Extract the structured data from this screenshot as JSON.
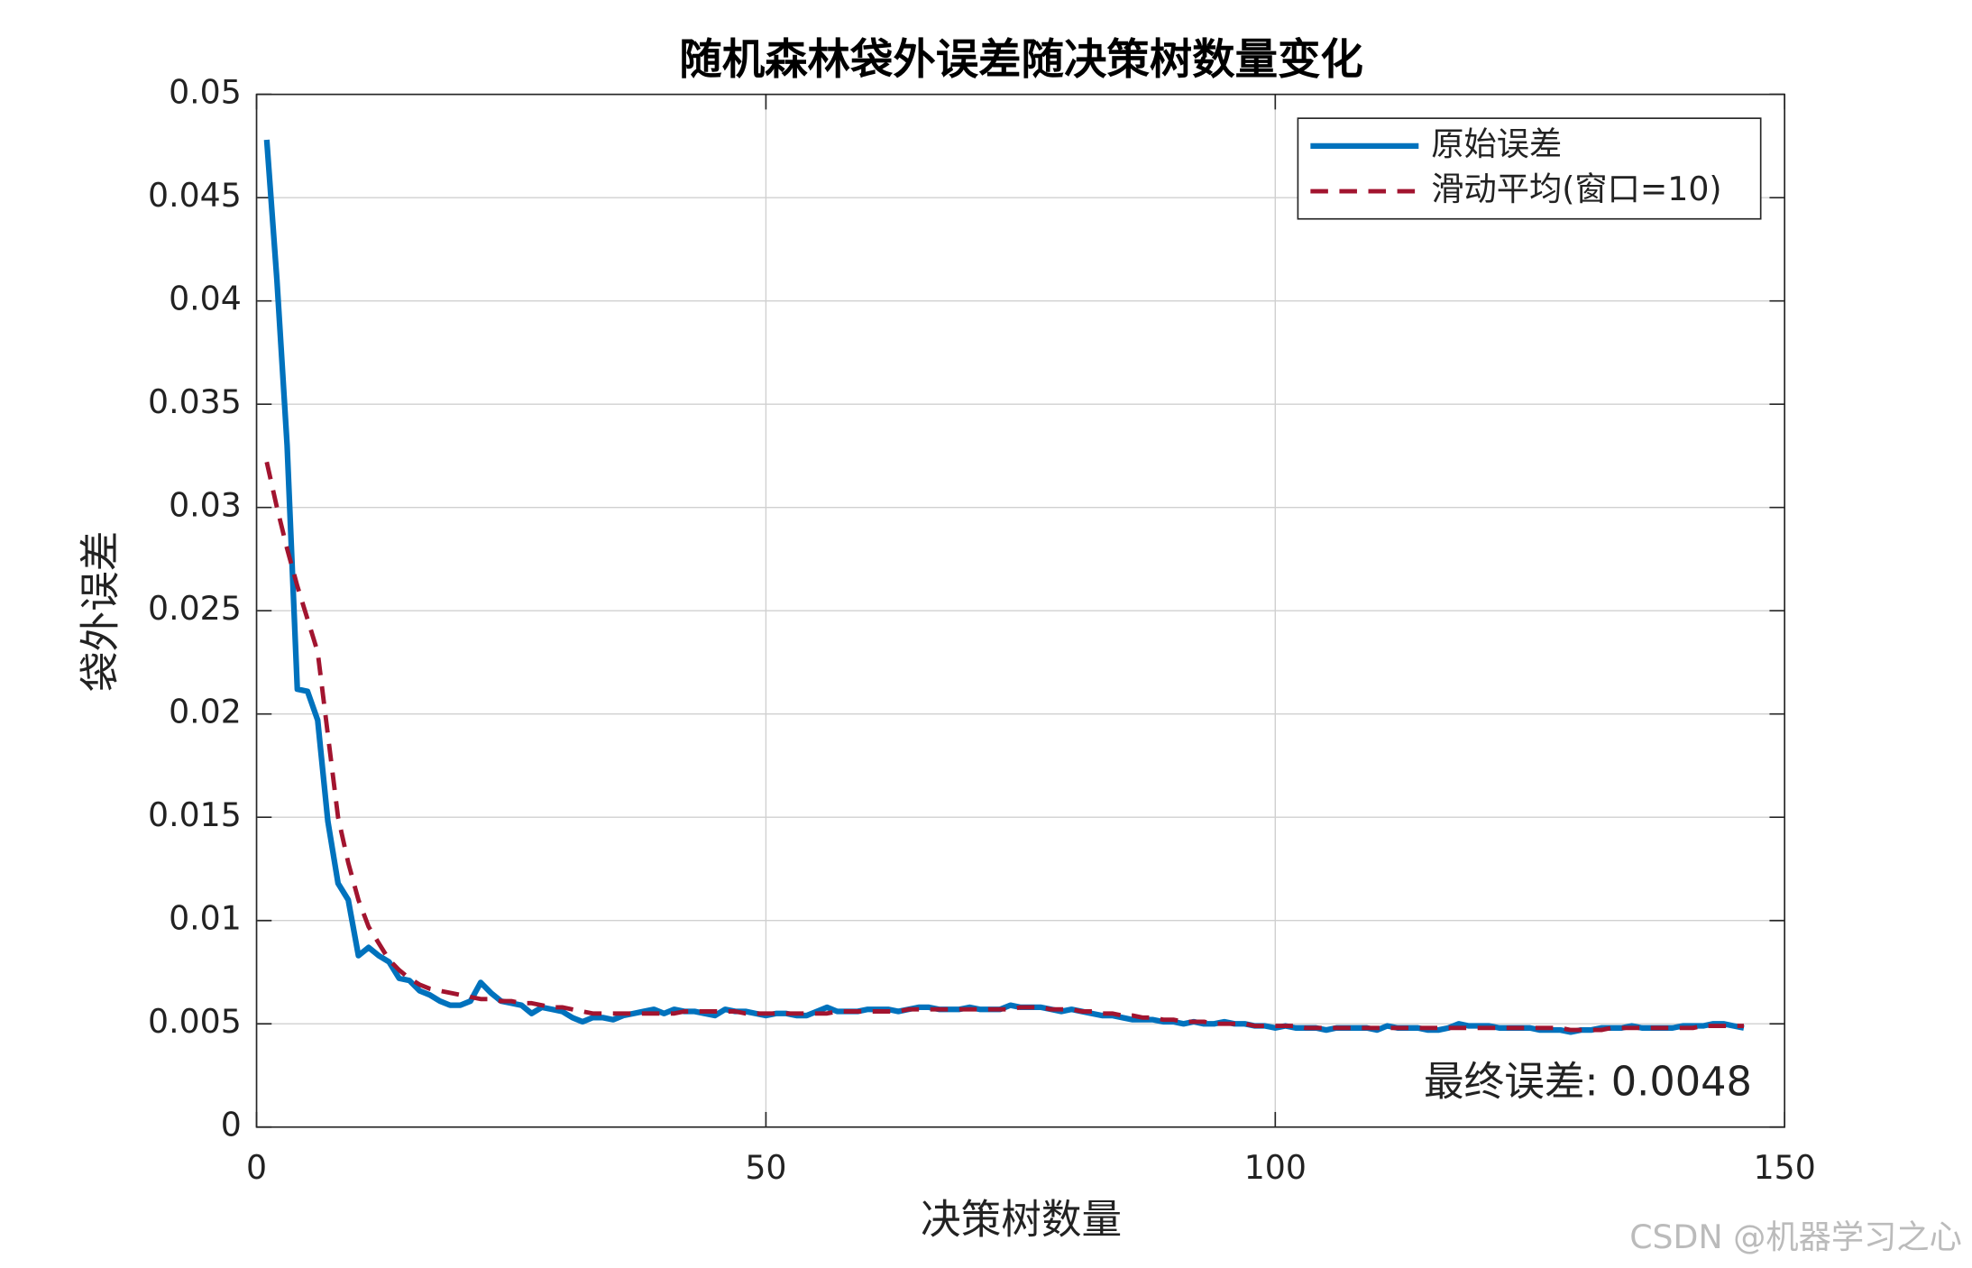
{
  "chart_data": {
    "type": "line",
    "title": "随机森林袋外误差随决策树数量变化",
    "xlabel": "决策树数量",
    "ylabel": "袋外误差",
    "annotation": "最终误差: 0.0048",
    "watermark": "CSDN @机器学习之心",
    "legend": "upper right",
    "grid": true,
    "xlim": [
      0,
      150
    ],
    "xticks": [
      0,
      50,
      100,
      150
    ],
    "ylim": [
      0,
      0.05
    ],
    "yticks": [
      0,
      0.005,
      0.01,
      0.015,
      0.02,
      0.025,
      0.03,
      0.035,
      0.04,
      0.045,
      0.05
    ],
    "x": [
      1,
      2,
      3,
      4,
      5,
      6,
      7,
      8,
      9,
      10,
      11,
      12,
      13,
      14,
      15,
      16,
      17,
      18,
      19,
      20,
      21,
      22,
      23,
      24,
      25,
      26,
      27,
      28,
      29,
      30,
      31,
      32,
      33,
      34,
      35,
      36,
      37,
      38,
      39,
      40,
      41,
      42,
      43,
      44,
      45,
      46,
      47,
      48,
      49,
      50,
      51,
      52,
      53,
      54,
      55,
      56,
      57,
      58,
      59,
      60,
      61,
      62,
      63,
      64,
      65,
      66,
      67,
      68,
      69,
      70,
      71,
      72,
      73,
      74,
      75,
      76,
      77,
      78,
      79,
      80,
      81,
      82,
      83,
      84,
      85,
      86,
      87,
      88,
      89,
      90,
      91,
      92,
      93,
      94,
      95,
      96,
      97,
      98,
      99,
      100,
      101,
      102,
      103,
      104,
      105,
      106,
      107,
      108,
      109,
      110,
      111,
      112,
      113,
      114,
      115,
      116,
      117,
      118,
      119,
      120,
      121,
      122,
      123,
      124,
      125,
      126,
      127,
      128,
      129,
      130,
      131,
      132,
      133,
      134,
      135,
      136,
      137,
      138,
      139,
      140,
      141,
      142,
      143,
      144,
      145,
      146
    ],
    "series": [
      {
        "name": "原始误差",
        "color": "#0072bd",
        "dash": false,
        "values": [
          0.0478,
          0.041,
          0.033,
          0.0212,
          0.0211,
          0.0197,
          0.0148,
          0.0118,
          0.011,
          0.0083,
          0.0087,
          0.0083,
          0.008,
          0.0072,
          0.0071,
          0.0066,
          0.0064,
          0.0061,
          0.0059,
          0.0059,
          0.0061,
          0.007,
          0.0065,
          0.0061,
          0.006,
          0.0059,
          0.0055,
          0.0058,
          0.0057,
          0.0056,
          0.0053,
          0.0051,
          0.0053,
          0.0053,
          0.0052,
          0.0054,
          0.0055,
          0.0056,
          0.0057,
          0.0055,
          0.0057,
          0.0056,
          0.0056,
          0.0055,
          0.0054,
          0.0057,
          0.0056,
          0.0056,
          0.0055,
          0.0054,
          0.0055,
          0.0055,
          0.0054,
          0.0054,
          0.0056,
          0.0058,
          0.0056,
          0.0056,
          0.0056,
          0.0057,
          0.0057,
          0.0057,
          0.0056,
          0.0057,
          0.0058,
          0.0058,
          0.0057,
          0.0057,
          0.0057,
          0.0058,
          0.0057,
          0.0057,
          0.0057,
          0.0059,
          0.0058,
          0.0058,
          0.0058,
          0.0057,
          0.0056,
          0.0057,
          0.0056,
          0.0055,
          0.0054,
          0.0054,
          0.0053,
          0.0052,
          0.0052,
          0.0052,
          0.0051,
          0.0051,
          0.005,
          0.0051,
          0.005,
          0.005,
          0.0051,
          0.005,
          0.005,
          0.0049,
          0.0049,
          0.0048,
          0.0049,
          0.0048,
          0.0048,
          0.0048,
          0.0047,
          0.0048,
          0.0048,
          0.0048,
          0.0048,
          0.0047,
          0.0049,
          0.0048,
          0.0048,
          0.0048,
          0.0047,
          0.0047,
          0.0048,
          0.005,
          0.0049,
          0.0049,
          0.0049,
          0.0048,
          0.0048,
          0.0048,
          0.0048,
          0.0047,
          0.0047,
          0.0047,
          0.0046,
          0.0047,
          0.0047,
          0.0048,
          0.0048,
          0.0048,
          0.0049,
          0.0048,
          0.0048,
          0.0048,
          0.0048,
          0.0049,
          0.0049,
          0.0049,
          0.005,
          0.005,
          0.0049,
          0.0048
        ]
      },
      {
        "name": "滑动平均(窗口=10)",
        "color": "#a2142f",
        "dash": true,
        "values": [
          0.0322,
          0.03,
          0.028,
          0.0262,
          0.0246,
          0.023,
          0.019,
          0.015,
          0.0128,
          0.011,
          0.0097,
          0.0089,
          0.0081,
          0.0076,
          0.0072,
          0.0069,
          0.0067,
          0.0066,
          0.0065,
          0.0064,
          0.0063,
          0.0062,
          0.0062,
          0.0061,
          0.0061,
          0.006,
          0.006,
          0.0059,
          0.0058,
          0.0058,
          0.0057,
          0.0056,
          0.0055,
          0.0055,
          0.0055,
          0.0055,
          0.0055,
          0.0055,
          0.0055,
          0.0055,
          0.0055,
          0.0056,
          0.0056,
          0.0056,
          0.0056,
          0.0056,
          0.0056,
          0.0055,
          0.0055,
          0.0055,
          0.0055,
          0.0055,
          0.0055,
          0.0055,
          0.0055,
          0.0055,
          0.0056,
          0.0056,
          0.0056,
          0.0056,
          0.0056,
          0.0056,
          0.0056,
          0.0057,
          0.0057,
          0.0057,
          0.0057,
          0.0057,
          0.0057,
          0.0057,
          0.0057,
          0.0057,
          0.0057,
          0.0057,
          0.0058,
          0.0058,
          0.0058,
          0.0057,
          0.0057,
          0.0057,
          0.0056,
          0.0056,
          0.0055,
          0.0055,
          0.0054,
          0.0054,
          0.0053,
          0.0053,
          0.0052,
          0.0052,
          0.0051,
          0.0051,
          0.0051,
          0.005,
          0.005,
          0.005,
          0.005,
          0.0049,
          0.0049,
          0.0049,
          0.0049,
          0.0049,
          0.0048,
          0.0048,
          0.0048,
          0.0048,
          0.0048,
          0.0048,
          0.0048,
          0.0048,
          0.0048,
          0.0048,
          0.0048,
          0.0048,
          0.0048,
          0.0048,
          0.0048,
          0.0048,
          0.0048,
          0.0048,
          0.0048,
          0.0048,
          0.0048,
          0.0048,
          0.0048,
          0.0048,
          0.0048,
          0.0048,
          0.0047,
          0.0047,
          0.0047,
          0.0047,
          0.0048,
          0.0048,
          0.0048,
          0.0048,
          0.0048,
          0.0048,
          0.0048,
          0.0048,
          0.0048,
          0.0049,
          0.0049,
          0.0049,
          0.0049,
          0.0049
        ]
      }
    ]
  }
}
